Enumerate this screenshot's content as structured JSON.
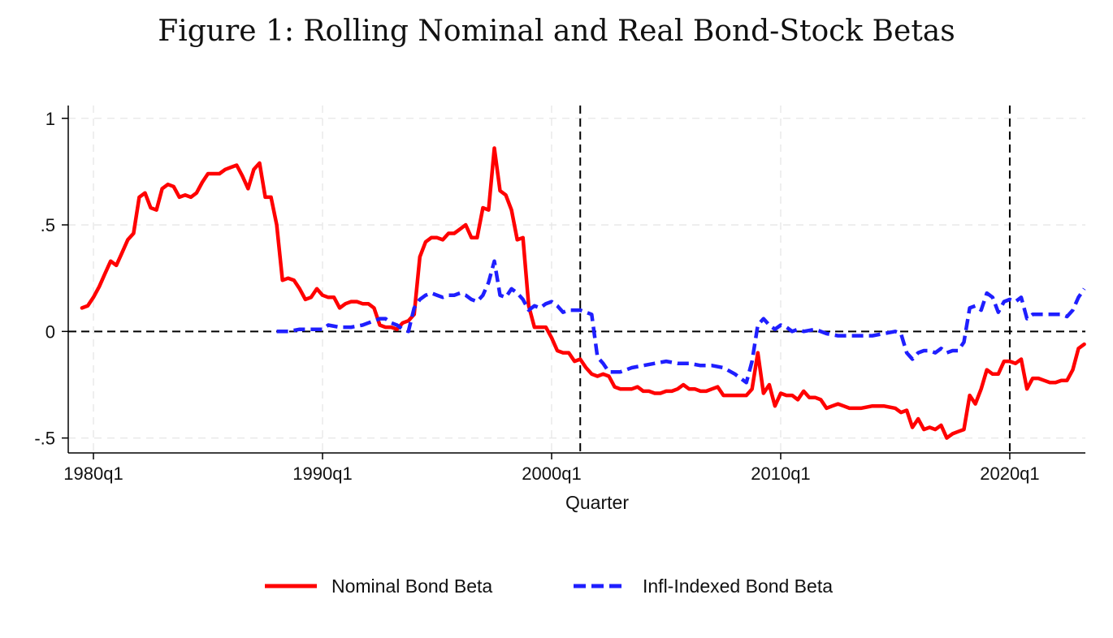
{
  "figure": {
    "title": "Figure 1: Rolling Nominal and Real Bond-Stock Betas"
  },
  "chart_data": {
    "type": "line",
    "title": "Figure 1: Rolling Nominal and Real Bond-Stock Betas",
    "xlabel": "Quarter",
    "ylabel": "",
    "x_ticks": [
      {
        "label": "1980q1",
        "value": 1980.0
      },
      {
        "label": "1990q1",
        "value": 1990.0
      },
      {
        "label": "2000q1",
        "value": 2000.0
      },
      {
        "label": "2010q1",
        "value": 2010.0
      },
      {
        "label": "2020q1",
        "value": 2020.0
      }
    ],
    "y_ticks": [
      {
        "label": "1",
        "value": 1
      },
      {
        "label": ".5",
        "value": 0.5
      },
      {
        "label": "0",
        "value": 0
      },
      {
        "label": "-.5",
        "value": -0.5
      }
    ],
    "xlim": [
      1978.9,
      2023.3
    ],
    "ylim": [
      -0.57,
      1.06
    ],
    "grid": true,
    "reference_lines": {
      "horizontal": [
        0
      ],
      "vertical": [
        2001.25,
        2020.0
      ]
    },
    "legend_position": "bottom",
    "series": [
      {
        "name": "Nominal Bond Beta",
        "color": "#ff0000",
        "style": "solid",
        "points": [
          [
            1979.5,
            0.11
          ],
          [
            1979.75,
            0.12
          ],
          [
            1980.0,
            0.16
          ],
          [
            1980.25,
            0.21
          ],
          [
            1980.5,
            0.27
          ],
          [
            1980.75,
            0.33
          ],
          [
            1981.0,
            0.31
          ],
          [
            1981.25,
            0.37
          ],
          [
            1981.5,
            0.43
          ],
          [
            1981.75,
            0.46
          ],
          [
            1982.0,
            0.63
          ],
          [
            1982.25,
            0.65
          ],
          [
            1982.5,
            0.58
          ],
          [
            1982.75,
            0.57
          ],
          [
            1983.0,
            0.67
          ],
          [
            1983.25,
            0.69
          ],
          [
            1983.5,
            0.68
          ],
          [
            1983.75,
            0.63
          ],
          [
            1984.0,
            0.64
          ],
          [
            1984.25,
            0.63
          ],
          [
            1984.5,
            0.65
          ],
          [
            1984.75,
            0.7
          ],
          [
            1985.0,
            0.74
          ],
          [
            1985.25,
            0.74
          ],
          [
            1985.5,
            0.74
          ],
          [
            1985.75,
            0.76
          ],
          [
            1986.0,
            0.77
          ],
          [
            1986.25,
            0.78
          ],
          [
            1986.5,
            0.73
          ],
          [
            1986.75,
            0.67
          ],
          [
            1987.0,
            0.76
          ],
          [
            1987.25,
            0.79
          ],
          [
            1987.5,
            0.63
          ],
          [
            1987.75,
            0.63
          ],
          [
            1988.0,
            0.5
          ],
          [
            1988.25,
            0.24
          ],
          [
            1988.5,
            0.25
          ],
          [
            1988.75,
            0.24
          ],
          [
            1989.0,
            0.2
          ],
          [
            1989.25,
            0.15
          ],
          [
            1989.5,
            0.16
          ],
          [
            1989.75,
            0.2
          ],
          [
            1990.0,
            0.17
          ],
          [
            1990.25,
            0.16
          ],
          [
            1990.5,
            0.16
          ],
          [
            1990.75,
            0.11
          ],
          [
            1991.0,
            0.13
          ],
          [
            1991.25,
            0.14
          ],
          [
            1991.5,
            0.14
          ],
          [
            1991.75,
            0.13
          ],
          [
            1992.0,
            0.13
          ],
          [
            1992.25,
            0.11
          ],
          [
            1992.5,
            0.03
          ],
          [
            1992.75,
            0.02
          ],
          [
            1993.0,
            0.02
          ],
          [
            1993.25,
            0.01
          ],
          [
            1993.5,
            0.04
          ],
          [
            1993.75,
            0.05
          ],
          [
            1994.0,
            0.08
          ],
          [
            1994.25,
            0.35
          ],
          [
            1994.5,
            0.42
          ],
          [
            1994.75,
            0.44
          ],
          [
            1995.0,
            0.44
          ],
          [
            1995.25,
            0.43
          ],
          [
            1995.5,
            0.46
          ],
          [
            1995.75,
            0.46
          ],
          [
            1996.0,
            0.48
          ],
          [
            1996.25,
            0.5
          ],
          [
            1996.5,
            0.44
          ],
          [
            1996.75,
            0.44
          ],
          [
            1997.0,
            0.58
          ],
          [
            1997.25,
            0.57
          ],
          [
            1997.5,
            0.86
          ],
          [
            1997.75,
            0.66
          ],
          [
            1998.0,
            0.64
          ],
          [
            1998.25,
            0.57
          ],
          [
            1998.5,
            0.43
          ],
          [
            1998.75,
            0.44
          ],
          [
            1999.0,
            0.12
          ],
          [
            1999.25,
            0.02
          ],
          [
            1999.5,
            0.02
          ],
          [
            1999.75,
            0.02
          ],
          [
            2000.0,
            -0.03
          ],
          [
            2000.25,
            -0.09
          ],
          [
            2000.5,
            -0.1
          ],
          [
            2000.75,
            -0.1
          ],
          [
            2001.0,
            -0.14
          ],
          [
            2001.25,
            -0.13
          ],
          [
            2001.5,
            -0.17
          ],
          [
            2001.75,
            -0.2
          ],
          [
            2002.0,
            -0.21
          ],
          [
            2002.25,
            -0.2
          ],
          [
            2002.5,
            -0.21
          ],
          [
            2002.75,
            -0.26
          ],
          [
            2003.0,
            -0.27
          ],
          [
            2003.25,
            -0.27
          ],
          [
            2003.5,
            -0.27
          ],
          [
            2003.75,
            -0.26
          ],
          [
            2004.0,
            -0.28
          ],
          [
            2004.25,
            -0.28
          ],
          [
            2004.5,
            -0.29
          ],
          [
            2004.75,
            -0.29
          ],
          [
            2005.0,
            -0.28
          ],
          [
            2005.25,
            -0.28
          ],
          [
            2005.5,
            -0.27
          ],
          [
            2005.75,
            -0.25
          ],
          [
            2006.0,
            -0.27
          ],
          [
            2006.25,
            -0.27
          ],
          [
            2006.5,
            -0.28
          ],
          [
            2006.75,
            -0.28
          ],
          [
            2007.0,
            -0.27
          ],
          [
            2007.25,
            -0.26
          ],
          [
            2007.5,
            -0.3
          ],
          [
            2007.75,
            -0.3
          ],
          [
            2008.0,
            -0.3
          ],
          [
            2008.25,
            -0.3
          ],
          [
            2008.5,
            -0.3
          ],
          [
            2008.75,
            -0.27
          ],
          [
            2009.0,
            -0.1
          ],
          [
            2009.25,
            -0.29
          ],
          [
            2009.5,
            -0.25
          ],
          [
            2009.75,
            -0.35
          ],
          [
            2010.0,
            -0.29
          ],
          [
            2010.25,
            -0.3
          ],
          [
            2010.5,
            -0.3
          ],
          [
            2010.75,
            -0.32
          ],
          [
            2011.0,
            -0.28
          ],
          [
            2011.25,
            -0.31
          ],
          [
            2011.5,
            -0.31
          ],
          [
            2011.75,
            -0.32
          ],
          [
            2012.0,
            -0.36
          ],
          [
            2012.25,
            -0.35
          ],
          [
            2012.5,
            -0.34
          ],
          [
            2012.75,
            -0.35
          ],
          [
            2013.0,
            -0.36
          ],
          [
            2013.5,
            -0.36
          ],
          [
            2014.0,
            -0.35
          ],
          [
            2014.5,
            -0.35
          ],
          [
            2015.0,
            -0.36
          ],
          [
            2015.25,
            -0.38
          ],
          [
            2015.5,
            -0.37
          ],
          [
            2015.75,
            -0.45
          ],
          [
            2016.0,
            -0.41
          ],
          [
            2016.25,
            -0.46
          ],
          [
            2016.5,
            -0.45
          ],
          [
            2016.75,
            -0.46
          ],
          [
            2017.0,
            -0.44
          ],
          [
            2017.25,
            -0.5
          ],
          [
            2017.5,
            -0.48
          ],
          [
            2017.75,
            -0.47
          ],
          [
            2018.0,
            -0.46
          ],
          [
            2018.25,
            -0.3
          ],
          [
            2018.5,
            -0.34
          ],
          [
            2018.75,
            -0.27
          ],
          [
            2019.0,
            -0.18
          ],
          [
            2019.25,
            -0.2
          ],
          [
            2019.5,
            -0.2
          ],
          [
            2019.75,
            -0.14
          ],
          [
            2020.0,
            -0.14
          ],
          [
            2020.25,
            -0.15
          ],
          [
            2020.5,
            -0.13
          ],
          [
            2020.75,
            -0.27
          ],
          [
            2021.0,
            -0.22
          ],
          [
            2021.25,
            -0.22
          ],
          [
            2021.5,
            -0.23
          ],
          [
            2021.75,
            -0.24
          ],
          [
            2022.0,
            -0.24
          ],
          [
            2022.25,
            -0.23
          ],
          [
            2022.5,
            -0.23
          ],
          [
            2022.75,
            -0.18
          ],
          [
            2023.0,
            -0.08
          ],
          [
            2023.25,
            -0.06
          ]
        ]
      },
      {
        "name": "Infl-Indexed Bond Beta",
        "color": "#1f1fff",
        "style": "dashed",
        "points": [
          [
            1988.0,
            0.0
          ],
          [
            1988.5,
            0.0
          ],
          [
            1989.0,
            0.01
          ],
          [
            1989.5,
            0.01
          ],
          [
            1990.0,
            0.01
          ],
          [
            1990.25,
            0.03
          ],
          [
            1990.75,
            0.02
          ],
          [
            1991.25,
            0.02
          ],
          [
            1991.75,
            0.03
          ],
          [
            1992.25,
            0.05
          ],
          [
            1992.5,
            0.06
          ],
          [
            1992.75,
            0.06
          ],
          [
            1993.0,
            0.04
          ],
          [
            1993.25,
            0.03
          ],
          [
            1993.5,
            0.01
          ],
          [
            1993.75,
            0.0
          ],
          [
            1994.0,
            0.11
          ],
          [
            1994.25,
            0.15
          ],
          [
            1994.5,
            0.17
          ],
          [
            1994.75,
            0.18
          ],
          [
            1995.0,
            0.17
          ],
          [
            1995.25,
            0.16
          ],
          [
            1995.5,
            0.17
          ],
          [
            1995.75,
            0.17
          ],
          [
            1996.0,
            0.18
          ],
          [
            1996.25,
            0.17
          ],
          [
            1996.5,
            0.15
          ],
          [
            1996.75,
            0.14
          ],
          [
            1997.0,
            0.17
          ],
          [
            1997.25,
            0.23
          ],
          [
            1997.5,
            0.33
          ],
          [
            1997.75,
            0.17
          ],
          [
            1998.0,
            0.16
          ],
          [
            1998.25,
            0.2
          ],
          [
            1998.5,
            0.18
          ],
          [
            1998.75,
            0.15
          ],
          [
            1999.0,
            0.1
          ],
          [
            1999.25,
            0.12
          ],
          [
            1999.5,
            0.11
          ],
          [
            1999.75,
            0.13
          ],
          [
            2000.0,
            0.14
          ],
          [
            2000.25,
            0.12
          ],
          [
            2000.5,
            0.09
          ],
          [
            2000.75,
            0.1
          ],
          [
            2001.0,
            0.1
          ],
          [
            2001.25,
            0.1
          ],
          [
            2001.5,
            0.09
          ],
          [
            2001.75,
            0.08
          ],
          [
            2002.0,
            -0.12
          ],
          [
            2002.25,
            -0.15
          ],
          [
            2002.5,
            -0.19
          ],
          [
            2002.75,
            -0.19
          ],
          [
            2003.0,
            -0.19
          ],
          [
            2003.5,
            -0.17
          ],
          [
            2004.0,
            -0.16
          ],
          [
            2004.5,
            -0.15
          ],
          [
            2005.0,
            -0.14
          ],
          [
            2005.5,
            -0.15
          ],
          [
            2006.0,
            -0.15
          ],
          [
            2006.5,
            -0.16
          ],
          [
            2007.0,
            -0.16
          ],
          [
            2007.5,
            -0.17
          ],
          [
            2008.0,
            -0.2
          ],
          [
            2008.25,
            -0.22
          ],
          [
            2008.5,
            -0.24
          ],
          [
            2008.75,
            -0.14
          ],
          [
            2009.0,
            0.03
          ],
          [
            2009.25,
            0.06
          ],
          [
            2009.5,
            0.03
          ],
          [
            2009.75,
            0.01
          ],
          [
            2010.0,
            0.03
          ],
          [
            2010.25,
            0.02
          ],
          [
            2010.5,
            0.0
          ],
          [
            2010.75,
            0.01
          ],
          [
            2011.0,
            0.0
          ],
          [
            2011.5,
            0.01
          ],
          [
            2012.0,
            -0.01
          ],
          [
            2012.5,
            -0.02
          ],
          [
            2013.0,
            -0.02
          ],
          [
            2013.5,
            -0.02
          ],
          [
            2014.0,
            -0.02
          ],
          [
            2014.5,
            -0.01
          ],
          [
            2015.0,
            0.0
          ],
          [
            2015.25,
            -0.01
          ],
          [
            2015.5,
            -0.1
          ],
          [
            2015.75,
            -0.13
          ],
          [
            2016.0,
            -0.1
          ],
          [
            2016.25,
            -0.09
          ],
          [
            2016.5,
            -0.09
          ],
          [
            2016.75,
            -0.1
          ],
          [
            2017.0,
            -0.08
          ],
          [
            2017.25,
            -0.1
          ],
          [
            2017.5,
            -0.09
          ],
          [
            2017.75,
            -0.09
          ],
          [
            2018.0,
            -0.05
          ],
          [
            2018.25,
            0.11
          ],
          [
            2018.5,
            0.12
          ],
          [
            2018.75,
            0.1
          ],
          [
            2019.0,
            0.18
          ],
          [
            2019.25,
            0.16
          ],
          [
            2019.5,
            0.09
          ],
          [
            2019.75,
            0.14
          ],
          [
            2020.0,
            0.15
          ],
          [
            2020.25,
            0.14
          ],
          [
            2020.5,
            0.16
          ],
          [
            2020.75,
            0.06
          ],
          [
            2021.0,
            0.08
          ],
          [
            2021.5,
            0.08
          ],
          [
            2022.0,
            0.08
          ],
          [
            2022.25,
            0.08
          ],
          [
            2022.5,
            0.07
          ],
          [
            2022.75,
            0.1
          ],
          [
            2023.0,
            0.16
          ],
          [
            2023.25,
            0.2
          ]
        ]
      }
    ]
  }
}
